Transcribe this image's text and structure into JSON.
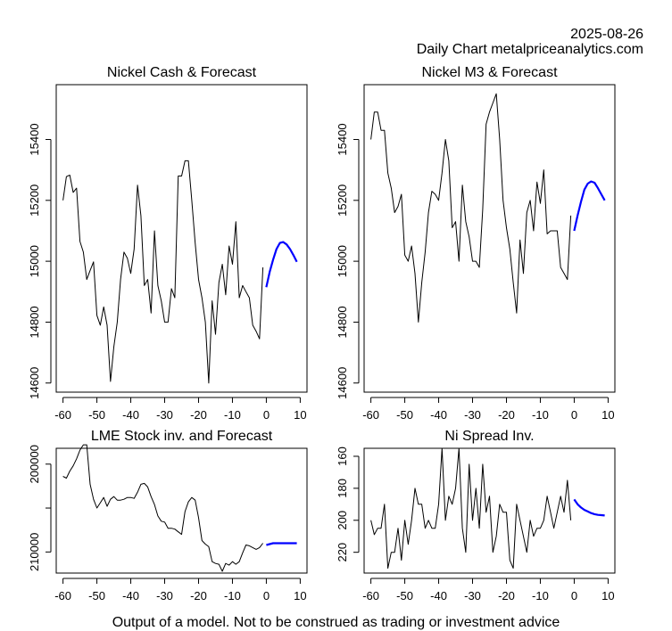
{
  "header": {
    "date": "2025-08-26",
    "subtitle": "Daily Chart metalpriceanalytics.com"
  },
  "footer": "Output of a model. Not to be construed as trading or investment advice",
  "colors": {
    "history": "#000000",
    "forecast": "#0000ff"
  },
  "chart_data": [
    {
      "id": "nickel-cash",
      "type": "line",
      "title": "Nickel Cash & Forecast",
      "xlabel": "",
      "ylabel": "",
      "xlim": [
        -62,
        12
      ],
      "ylim": [
        14570,
        15580
      ],
      "y_inverted": false,
      "xticks": [
        -60,
        -50,
        -40,
        -30,
        -20,
        -10,
        0,
        10
      ],
      "yticks": [
        14600,
        14800,
        15000,
        15200,
        15400
      ],
      "grid": false,
      "series": [
        {
          "name": "history",
          "x": [
            -60,
            -59,
            -58,
            -57,
            -56,
            -55,
            -54,
            -53,
            -52,
            -51,
            -50,
            -49,
            -48,
            -47,
            -46,
            -45,
            -44,
            -43,
            -42,
            -41,
            -40,
            -39,
            -38,
            -37,
            -36,
            -35,
            -34,
            -33,
            -32,
            -31,
            -30,
            -29,
            -28,
            -27,
            -26,
            -25,
            -24,
            -23,
            -22,
            -21,
            -20,
            -19,
            -18,
            -17,
            -16,
            -15,
            -14,
            -13,
            -12,
            -11,
            -10,
            -9,
            -8,
            -7,
            -6,
            -5,
            -4,
            -3,
            -2,
            -1
          ],
          "y": [
            15200,
            15278,
            15283,
            15226,
            15240,
            15065,
            15030,
            14940,
            14970,
            14998,
            14822,
            14790,
            14850,
            14790,
            14605,
            14720,
            14800,
            14940,
            15030,
            15010,
            14960,
            15040,
            15250,
            15150,
            14920,
            14940,
            14830,
            15100,
            14920,
            14870,
            14800,
            14800,
            14910,
            14880,
            15280,
            15280,
            15330,
            15330,
            15200,
            15060,
            14940,
            14880,
            14800,
            14600,
            14870,
            14760,
            14930,
            14990,
            14890,
            15050,
            14990,
            15130,
            14880,
            14920,
            14900,
            14880,
            14790,
            14770,
            14745,
            14980
          ]
        },
        {
          "name": "forecast",
          "x": [
            0,
            1,
            2,
            3,
            4,
            5,
            6,
            7,
            8,
            9
          ],
          "y": [
            14915,
            14965,
            15005,
            15040,
            15060,
            15063,
            15055,
            15040,
            15020,
            14998
          ]
        }
      ]
    },
    {
      "id": "nickel-m3",
      "type": "line",
      "title": "Nickel M3 & Forecast",
      "xlabel": "",
      "ylabel": "",
      "xlim": [
        -62,
        12
      ],
      "ylim": [
        14570,
        15580
      ],
      "y_inverted": false,
      "xticks": [
        -60,
        -50,
        -40,
        -30,
        -20,
        -10,
        0,
        10
      ],
      "yticks": [
        14600,
        14800,
        15000,
        15200,
        15400
      ],
      "grid": false,
      "series": [
        {
          "name": "history",
          "x": [
            -60,
            -59,
            -58,
            -57,
            -56,
            -55,
            -54,
            -53,
            -52,
            -51,
            -50,
            -49,
            -48,
            -47,
            -46,
            -45,
            -44,
            -43,
            -42,
            -41,
            -40,
            -39,
            -38,
            -37,
            -36,
            -35,
            -34,
            -33,
            -32,
            -31,
            -30,
            -29,
            -28,
            -27,
            -26,
            -25,
            -24,
            -23,
            -22,
            -21,
            -20,
            -19,
            -18,
            -17,
            -16,
            -15,
            -14,
            -13,
            -12,
            -11,
            -10,
            -9,
            -8,
            -7,
            -6,
            -5,
            -4,
            -3,
            -2,
            -1
          ],
          "y": [
            15400,
            15490,
            15490,
            15430,
            15430,
            15290,
            15240,
            15160,
            15180,
            15220,
            15020,
            15000,
            15050,
            14960,
            14800,
            14930,
            15030,
            15160,
            15230,
            15220,
            15200,
            15290,
            15400,
            15330,
            15110,
            15130,
            15000,
            15250,
            15130,
            15080,
            15000,
            15000,
            14980,
            15170,
            15450,
            15490,
            15520,
            15550,
            15400,
            15200,
            15110,
            15040,
            14930,
            14830,
            15070,
            14960,
            15160,
            15200,
            15100,
            15260,
            15190,
            15300,
            15090,
            15100,
            15100,
            15100,
            14980,
            14960,
            14940,
            15150
          ]
        },
        {
          "name": "forecast",
          "x": [
            0,
            1,
            2,
            3,
            4,
            5,
            6,
            7,
            8,
            9
          ],
          "y": [
            15100,
            15150,
            15195,
            15235,
            15255,
            15262,
            15258,
            15240,
            15220,
            15200
          ]
        }
      ]
    },
    {
      "id": "lme-stock",
      "type": "line",
      "title": "LME Stock inv. and Forecast",
      "xlabel": "",
      "ylabel": "",
      "xlim": [
        -62,
        12
      ],
      "ylim": [
        198200,
        212400
      ],
      "y_inverted": true,
      "xticks": [
        -60,
        -50,
        -40,
        -30,
        -20,
        -10,
        0,
        10
      ],
      "yticks": [
        200000,
        205000,
        210000
      ],
      "ytick_labels": [
        "200000",
        "",
        "210000"
      ],
      "grid": false,
      "series": [
        {
          "name": "history",
          "x": [
            -60,
            -59,
            -58,
            -57,
            -56,
            -55,
            -54,
            -53,
            -52,
            -51,
            -50,
            -49,
            -48,
            -47,
            -46,
            -45,
            -44,
            -43,
            -42,
            -41,
            -40,
            -39,
            -38,
            -37,
            -36,
            -35,
            -34,
            -33,
            -32,
            -31,
            -30,
            -29,
            -28,
            -27,
            -26,
            -25,
            -24,
            -23,
            -22,
            -21,
            -20,
            -19,
            -18,
            -17,
            -16,
            -15,
            -14,
            -13,
            -12,
            -11,
            -10,
            -9,
            -8,
            -7,
            -6,
            -5,
            -4,
            -3,
            -2,
            -1
          ],
          "y": [
            201400,
            201600,
            200800,
            200200,
            199400,
            198400,
            197800,
            197800,
            202300,
            204000,
            205000,
            204400,
            203800,
            204800,
            204000,
            203700,
            204100,
            204100,
            204000,
            203800,
            203800,
            203900,
            203200,
            202300,
            202200,
            202600,
            203700,
            204600,
            205900,
            206500,
            206600,
            207300,
            207300,
            207400,
            207700,
            208000,
            205400,
            204300,
            203800,
            204100,
            206100,
            208700,
            209100,
            209400,
            211100,
            211300,
            211400,
            212200,
            211300,
            211500,
            211100,
            211400,
            211100,
            210100,
            209200,
            209300,
            209500,
            209700,
            209500,
            209000
          ]
        },
        {
          "name": "forecast",
          "x": [
            0,
            1,
            2,
            3,
            4,
            5,
            6,
            7,
            8,
            9
          ],
          "y": [
            209200,
            209100,
            209000,
            209000,
            209000,
            209000,
            209000,
            209000,
            209000,
            209000
          ]
        }
      ]
    },
    {
      "id": "ni-spread",
      "type": "line",
      "title": "Ni Spread Inv.",
      "xlabel": "",
      "ylabel": "",
      "xlim": [
        -62,
        12
      ],
      "ylim": [
        155,
        233
      ],
      "y_inverted": true,
      "xticks": [
        -60,
        -50,
        -40,
        -30,
        -20,
        -10,
        0,
        10
      ],
      "yticks": [
        160,
        180,
        200,
        220
      ],
      "grid": false,
      "series": [
        {
          "name": "history",
          "x": [
            -60,
            -59,
            -58,
            -57,
            -56,
            -55,
            -54,
            -53,
            -52,
            -51,
            -50,
            -49,
            -48,
            -47,
            -46,
            -45,
            -44,
            -43,
            -42,
            -41,
            -40,
            -39,
            -38,
            -37,
            -36,
            -35,
            -34,
            -33,
            -32,
            -31,
            -30,
            -29,
            -28,
            -27,
            -26,
            -25,
            -24,
            -23,
            -22,
            -21,
            -20,
            -19,
            -18,
            -17,
            -16,
            -15,
            -14,
            -13,
            -12,
            -11,
            -10,
            -9,
            -8,
            -7,
            -6,
            -5,
            -4,
            -3,
            -2,
            -1
          ],
          "y": [
            200,
            209,
            205,
            205,
            190,
            230,
            220,
            220,
            205,
            225,
            200,
            215,
            200,
            180,
            190,
            190,
            205,
            200,
            205,
            205,
            190,
            155,
            200,
            185,
            190,
            180,
            155,
            205,
            220,
            165,
            200,
            180,
            205,
            165,
            195,
            185,
            220,
            210,
            190,
            195,
            195,
            225,
            230,
            190,
            200,
            210,
            220,
            200,
            210,
            205,
            205,
            200,
            185,
            195,
            205,
            195,
            185,
            195,
            175,
            200
          ]
        },
        {
          "name": "forecast",
          "x": [
            0,
            1,
            2,
            3,
            4,
            5,
            6,
            7,
            8,
            9
          ],
          "y": [
            187,
            190,
            192,
            193.5,
            194.5,
            195.5,
            196.2,
            196.6,
            196.8,
            197
          ]
        }
      ]
    }
  ]
}
